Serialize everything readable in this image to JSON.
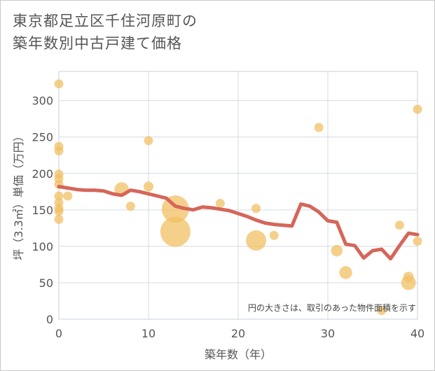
{
  "title_line1": "東京都足立区千住河原町の",
  "title_line2": "築年数別中古戸建て価格",
  "chart_data": {
    "type": "scatter",
    "title": "東京都足立区千住河原町の築年数別中古戸建て価格",
    "xlabel": "築年数（年）",
    "ylabel": "坪（3.3㎡）単価（万円）",
    "xlim": [
      0,
      40
    ],
    "ylim": [
      0,
      340
    ],
    "x_ticks": [
      0,
      10,
      20,
      30,
      40
    ],
    "y_ticks": [
      0,
      50,
      100,
      150,
      200,
      250,
      300
    ],
    "grid": true,
    "note": "円の大きさは、取引のあった物件面積を示す",
    "colors": {
      "bubble": "#f2c064",
      "line": "#d5665a",
      "grid": "#d4dbe3",
      "frame": "#c9d1da"
    },
    "bubbles": [
      {
        "x": 0,
        "y": 323,
        "size": 1
      },
      {
        "x": 0,
        "y": 237,
        "size": 1
      },
      {
        "x": 0,
        "y": 231,
        "size": 1
      },
      {
        "x": 0,
        "y": 199,
        "size": 1
      },
      {
        "x": 0,
        "y": 193,
        "size": 1
      },
      {
        "x": 0,
        "y": 185,
        "size": 1
      },
      {
        "x": 0,
        "y": 169,
        "size": 1
      },
      {
        "x": 0,
        "y": 160,
        "size": 1
      },
      {
        "x": 0,
        "y": 152,
        "size": 1
      },
      {
        "x": 0,
        "y": 148,
        "size": 1
      },
      {
        "x": 0,
        "y": 137,
        "size": 1
      },
      {
        "x": 1,
        "y": 169,
        "size": 1
      },
      {
        "x": 7,
        "y": 178,
        "size": 2.5
      },
      {
        "x": 8,
        "y": 155,
        "size": 1
      },
      {
        "x": 10,
        "y": 245,
        "size": 1
      },
      {
        "x": 10,
        "y": 182,
        "size": 1.2
      },
      {
        "x": 13,
        "y": 151,
        "size": 9
      },
      {
        "x": 13,
        "y": 120,
        "size": 11
      },
      {
        "x": 18,
        "y": 159,
        "size": 1
      },
      {
        "x": 22,
        "y": 152,
        "size": 1
      },
      {
        "x": 22,
        "y": 108,
        "size": 5
      },
      {
        "x": 24,
        "y": 115,
        "size": 1
      },
      {
        "x": 29,
        "y": 263,
        "size": 1
      },
      {
        "x": 31,
        "y": 94,
        "size": 1.6
      },
      {
        "x": 32,
        "y": 64,
        "size": 2
      },
      {
        "x": 36,
        "y": 12,
        "size": 1
      },
      {
        "x": 38,
        "y": 129,
        "size": 1
      },
      {
        "x": 39,
        "y": 58,
        "size": 1.3
      },
      {
        "x": 39,
        "y": 50,
        "size": 2.6
      },
      {
        "x": 40,
        "y": 288,
        "size": 1
      },
      {
        "x": 40,
        "y": 107,
        "size": 1
      }
    ],
    "trend": {
      "name": "average",
      "x": [
        0,
        1,
        2,
        3,
        4,
        5,
        6,
        7,
        8,
        9,
        10,
        11,
        12,
        13,
        14,
        15,
        16,
        17,
        18,
        19,
        20,
        21,
        22,
        23,
        24,
        25,
        26,
        27,
        28,
        29,
        30,
        31,
        32,
        33,
        34,
        35,
        36,
        37,
        38,
        39,
        40
      ],
      "y": [
        182,
        180,
        178,
        177,
        177,
        176,
        172,
        170,
        177,
        175,
        172,
        169,
        166,
        155,
        152,
        150,
        154,
        153,
        151,
        149,
        145,
        141,
        136,
        132,
        130,
        129,
        128,
        158,
        155,
        147,
        135,
        133,
        103,
        101,
        84,
        94,
        96,
        83,
        101,
        118,
        116
      ]
    }
  }
}
